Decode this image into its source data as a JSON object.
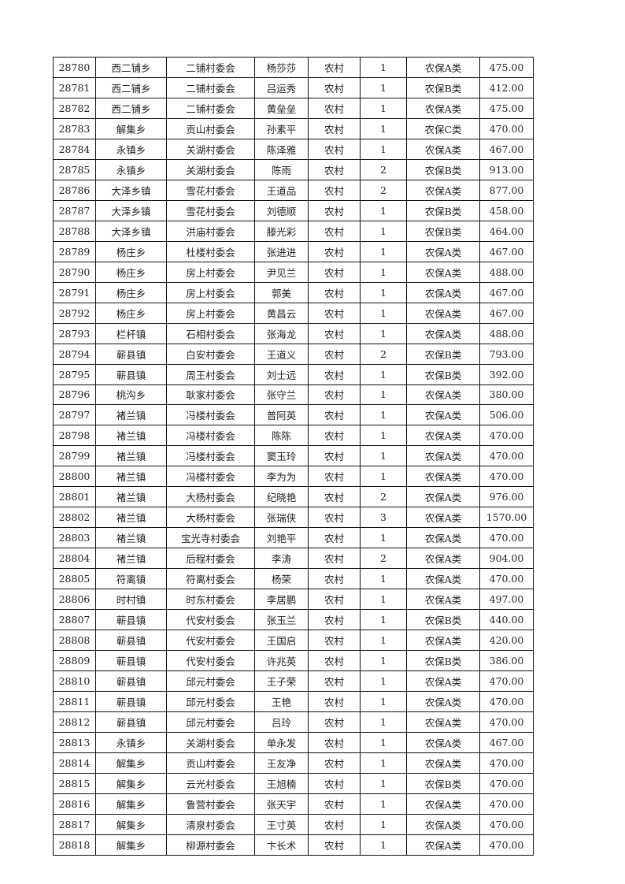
{
  "table": {
    "rows": [
      [
        "28780",
        "西二铺乡",
        "二铺村委会",
        "杨莎莎",
        "农村",
        "1",
        "农保A类",
        "475.00"
      ],
      [
        "28781",
        "西二铺乡",
        "二铺村委会",
        "吕运秀",
        "农村",
        "1",
        "农保B类",
        "412.00"
      ],
      [
        "28782",
        "西二铺乡",
        "二铺村委会",
        "黄垒垒",
        "农村",
        "1",
        "农保A类",
        "475.00"
      ],
      [
        "28783",
        "解集乡",
        "贡山村委会",
        "孙素平",
        "农村",
        "1",
        "农保C类",
        "470.00"
      ],
      [
        "28784",
        "永镇乡",
        "关湖村委会",
        "陈泽雅",
        "农村",
        "1",
        "农保A类",
        "467.00"
      ],
      [
        "28785",
        "永镇乡",
        "关湖村委会",
        "陈雨",
        "农村",
        "2",
        "农保B类",
        "913.00"
      ],
      [
        "28786",
        "大泽乡镇",
        "雪花村委会",
        "王道品",
        "农村",
        "2",
        "农保A类",
        "877.00"
      ],
      [
        "28787",
        "大泽乡镇",
        "雪花村委会",
        "刘德顺",
        "农村",
        "1",
        "农保B类",
        "458.00"
      ],
      [
        "28788",
        "大泽乡镇",
        "洪庙村委会",
        "滕光彩",
        "农村",
        "1",
        "农保B类",
        "464.00"
      ],
      [
        "28789",
        "杨庄乡",
        "杜楼村委会",
        "张进进",
        "农村",
        "1",
        "农保A类",
        "467.00"
      ],
      [
        "28790",
        "杨庄乡",
        "房上村委会",
        "尹见兰",
        "农村",
        "1",
        "农保A类",
        "488.00"
      ],
      [
        "28791",
        "杨庄乡",
        "房上村委会",
        "郭美",
        "农村",
        "1",
        "农保A类",
        "467.00"
      ],
      [
        "28792",
        "杨庄乡",
        "房上村委会",
        "黄昌云",
        "农村",
        "1",
        "农保A类",
        "467.00"
      ],
      [
        "28793",
        "栏杆镇",
        "石相村委会",
        "张海龙",
        "农村",
        "1",
        "农保A类",
        "488.00"
      ],
      [
        "28794",
        "蕲县镇",
        "白安村委会",
        "王道义",
        "农村",
        "2",
        "农保B类",
        "793.00"
      ],
      [
        "28795",
        "蕲县镇",
        "周王村委会",
        "刘士远",
        "农村",
        "1",
        "农保B类",
        "392.00"
      ],
      [
        "28796",
        "桃沟乡",
        "耿家村委会",
        "张守兰",
        "农村",
        "1",
        "农保A类",
        "380.00"
      ],
      [
        "28797",
        "褚兰镇",
        "冯楼村委会",
        "普阿英",
        "农村",
        "1",
        "农保A类",
        "506.00"
      ],
      [
        "28798",
        "褚兰镇",
        "冯楼村委会",
        "陈陈",
        "农村",
        "1",
        "农保A类",
        "470.00"
      ],
      [
        "28799",
        "褚兰镇",
        "冯楼村委会",
        "窦玉玲",
        "农村",
        "1",
        "农保A类",
        "470.00"
      ],
      [
        "28800",
        "褚兰镇",
        "冯楼村委会",
        "李为为",
        "农村",
        "1",
        "农保A类",
        "470.00"
      ],
      [
        "28801",
        "褚兰镇",
        "大杨村委会",
        "纪晓艳",
        "农村",
        "2",
        "农保A类",
        "976.00"
      ],
      [
        "28802",
        "褚兰镇",
        "大杨村委会",
        "张瑞侠",
        "农村",
        "3",
        "农保A类",
        "1570.00"
      ],
      [
        "28803",
        "褚兰镇",
        "宝光寺村委会",
        "刘艳平",
        "农村",
        "1",
        "农保A类",
        "470.00"
      ],
      [
        "28804",
        "褚兰镇",
        "后程村委会",
        "李涛",
        "农村",
        "2",
        "农保A类",
        "904.00"
      ],
      [
        "28805",
        "符离镇",
        "符离村委会",
        "杨荣",
        "农村",
        "1",
        "农保A类",
        "470.00"
      ],
      [
        "28806",
        "时村镇",
        "时东村委会",
        "李居鹏",
        "农村",
        "1",
        "农保A类",
        "497.00"
      ],
      [
        "28807",
        "蕲县镇",
        "代安村委会",
        "张玉兰",
        "农村",
        "1",
        "农保B类",
        "440.00"
      ],
      [
        "28808",
        "蕲县镇",
        "代安村委会",
        "王国启",
        "农村",
        "1",
        "农保A类",
        "420.00"
      ],
      [
        "28809",
        "蕲县镇",
        "代安村委会",
        "许兆英",
        "农村",
        "1",
        "农保B类",
        "386.00"
      ],
      [
        "28810",
        "蕲县镇",
        "邱元村委会",
        "王子荣",
        "农村",
        "1",
        "农保A类",
        "470.00"
      ],
      [
        "28811",
        "蕲县镇",
        "邱元村委会",
        "王艳",
        "农村",
        "1",
        "农保A类",
        "470.00"
      ],
      [
        "28812",
        "蕲县镇",
        "邱元村委会",
        "吕玲",
        "农村",
        "1",
        "农保A类",
        "470.00"
      ],
      [
        "28813",
        "永镇乡",
        "关湖村委会",
        "单永发",
        "农村",
        "1",
        "农保A类",
        "467.00"
      ],
      [
        "28814",
        "解集乡",
        "贡山村委会",
        "王友净",
        "农村",
        "1",
        "农保A类",
        "470.00"
      ],
      [
        "28815",
        "解集乡",
        "云光村委会",
        "王旭楠",
        "农村",
        "1",
        "农保B类",
        "470.00"
      ],
      [
        "28816",
        "解集乡",
        "鲁营村委会",
        "张天宇",
        "农村",
        "1",
        "农保A类",
        "470.00"
      ],
      [
        "28817",
        "解集乡",
        "清泉村委会",
        "王寸英",
        "农村",
        "1",
        "农保A类",
        "470.00"
      ],
      [
        "28818",
        "解集乡",
        "柳源村委会",
        "卞长术",
        "农村",
        "1",
        "农保A类",
        "470.00"
      ]
    ]
  }
}
